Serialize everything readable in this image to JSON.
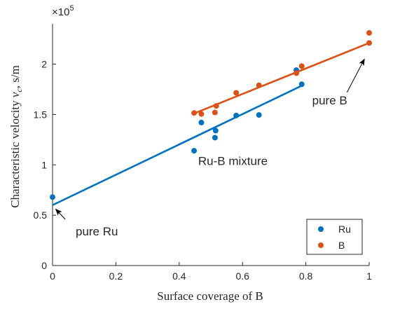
{
  "chart_data": {
    "type": "scatter",
    "xlabel": "Surface coverage of B",
    "ylabel": "Characteristic velocity v_c, s/m",
    "ylabel_parts": {
      "prefix": "Characteristic velocity ",
      "var": "v",
      "sub": "c",
      "suffix": ", s/m"
    },
    "y_exponent": {
      "base": "×10",
      "power": "5"
    },
    "xlim": [
      0,
      1
    ],
    "ylim": [
      0,
      2.4
    ],
    "x_ticks": [
      0,
      0.2,
      0.4,
      0.6,
      0.8,
      1
    ],
    "x_tick_labels": [
      "0",
      "0.2",
      "0.4",
      "0.6",
      "0.8",
      "1"
    ],
    "y_ticks": [
      0,
      0.5,
      1,
      1.5,
      2
    ],
    "y_tick_labels": [
      "0",
      "0.5",
      "1",
      "1.5",
      "2"
    ],
    "grid": false,
    "legend_position": "bottom-right",
    "series": [
      {
        "name": "Ru",
        "color": "#0072BD",
        "points": [
          [
            0.0,
            0.68
          ],
          [
            0.447,
            1.14
          ],
          [
            0.47,
            1.42
          ],
          [
            0.513,
            1.27
          ],
          [
            0.515,
            1.34
          ],
          [
            0.58,
            1.49
          ],
          [
            0.652,
            1.495
          ],
          [
            0.77,
            1.94
          ],
          [
            0.787,
            1.8
          ]
        ],
        "fit_line": {
          "x": [
            0.0,
            0.79
          ],
          "y": [
            0.6,
            1.79
          ]
        }
      },
      {
        "name": "B",
        "color": "#D95319",
        "points": [
          [
            0.447,
            1.515
          ],
          [
            0.47,
            1.505
          ],
          [
            0.513,
            1.52
          ],
          [
            0.517,
            1.585
          ],
          [
            0.58,
            1.715
          ],
          [
            0.652,
            1.79
          ],
          [
            0.77,
            1.91
          ],
          [
            0.787,
            1.98
          ],
          [
            1.0,
            2.21
          ],
          [
            1.0,
            2.31
          ]
        ],
        "fit_line": {
          "x": [
            0.447,
            1.0
          ],
          "y": [
            1.51,
            2.21
          ]
        }
      }
    ],
    "annotations": [
      {
        "id": "pure-ru",
        "text": "pure Ru",
        "text_at": [
          0.073,
          0.3
        ],
        "arrow_from": [
          0.04,
          0.46
        ],
        "arrow_to": [
          0.01,
          0.56
        ]
      },
      {
        "id": "ru-b-mixture",
        "text": "Ru-B mixture",
        "text_at": [
          0.46,
          1.0
        ],
        "arrow_from": null,
        "arrow_to": null
      },
      {
        "id": "pure-b",
        "text": "pure B",
        "text_at": [
          0.82,
          1.6
        ],
        "arrow_from": [
          0.93,
          1.72
        ],
        "arrow_to": [
          0.985,
          2.05
        ]
      }
    ]
  }
}
